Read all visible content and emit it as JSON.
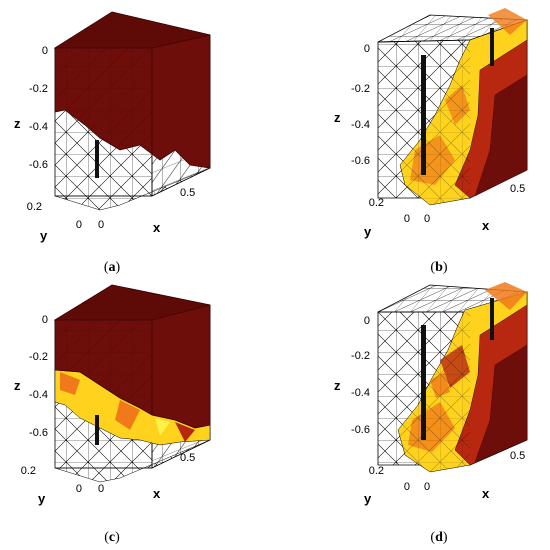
{
  "panels": [
    {
      "id": "a",
      "caption_open": "(",
      "caption_letter": "a",
      "caption_close": ")",
      "z_ticks": [
        "0",
        "-0.2",
        "-0.4",
        "-0.6"
      ],
      "z_label": "z",
      "y_ticks": [
        "0.2",
        "0"
      ],
      "y_label": "y",
      "x_ticks": [
        "0",
        "0.5"
      ],
      "x_label": "x",
      "style": "front"
    },
    {
      "id": "b",
      "caption_open": "(",
      "caption_letter": "b",
      "caption_close": ")",
      "z_ticks": [
        "0",
        "-0.2",
        "-0.4",
        "-0.6"
      ],
      "z_label": "z",
      "y_ticks": [
        "0.2",
        "0"
      ],
      "y_label": "y",
      "x_ticks": [
        "0",
        "0.5"
      ],
      "x_label": "x",
      "style": "diagonal"
    },
    {
      "id": "c",
      "caption_open": "(",
      "caption_letter": "c",
      "caption_close": ")",
      "z_ticks": [
        "0",
        "-0.2",
        "-0.4",
        "-0.6"
      ],
      "z_label": "z",
      "y_ticks": [
        "0.2",
        "0"
      ],
      "y_label": "y",
      "x_ticks": [
        "0",
        "0.5"
      ],
      "x_label": "x",
      "style": "front"
    },
    {
      "id": "d",
      "caption_open": "(",
      "caption_letter": "d",
      "caption_close": ")",
      "z_ticks": [
        "0",
        "-0.2",
        "-0.4",
        "-0.6"
      ],
      "z_label": "z",
      "y_ticks": [
        "0.2",
        "0"
      ],
      "y_label": "y",
      "x_ticks": [
        "0",
        "0.5"
      ],
      "x_label": "x",
      "style": "diagonal"
    }
  ],
  "colors": {
    "mesh_line": "#000000",
    "dark_red": "#6e0e0a",
    "red": "#b82810",
    "orange": "#f07a1a",
    "yellow": "#ffd21e",
    "light_yellow": "#fff04a",
    "electrode": "#111111"
  }
}
